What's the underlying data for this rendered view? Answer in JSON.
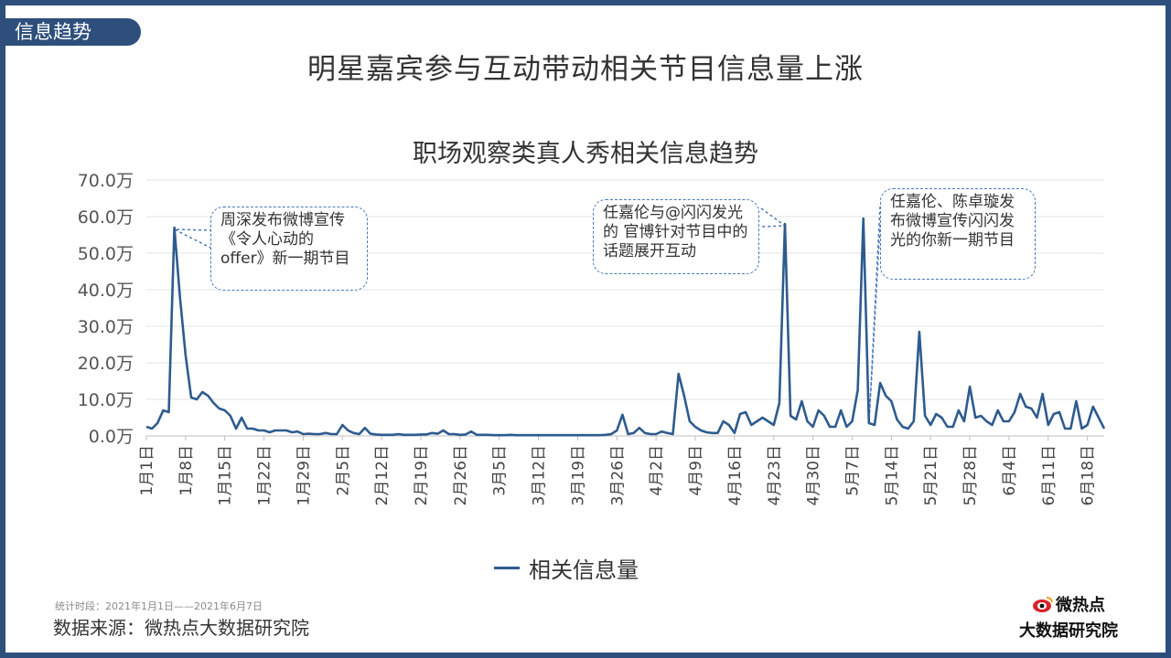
{
  "tag": "信息趋势",
  "main_title": "明星嘉宾参与互动带动相关节目信息量上涨",
  "chart_data": {
    "type": "line",
    "title": "职场观察类真人秀相关信息趋势",
    "ylim": [
      0,
      70
    ],
    "ytick_labels": [
      "0.0万",
      "10.0万",
      "20.0万",
      "30.0万",
      "40.0万",
      "50.0万",
      "60.0万",
      "70.0万"
    ],
    "grid": true,
    "legend_position": "bottom-center",
    "x_tick_labels": [
      "1月1日",
      "1月8日",
      "1月15日",
      "1月22日",
      "1月29日",
      "2月5日",
      "2月12日",
      "2月19日",
      "2月26日",
      "3月5日",
      "3月12日",
      "3月19日",
      "3月26日",
      "4月2日",
      "4月9日",
      "4月16日",
      "4月23日",
      "4月30日",
      "5月7日",
      "5月14日",
      "5月21日",
      "5月28日",
      "6月4日",
      "6月11日",
      "6月18日"
    ],
    "x_tick_day_index": [
      0,
      7,
      14,
      21,
      28,
      35,
      42,
      49,
      56,
      63,
      70,
      77,
      84,
      91,
      98,
      105,
      112,
      119,
      126,
      133,
      140,
      147,
      154,
      161,
      168
    ],
    "series": [
      {
        "name": "相关信息量",
        "color": "#2e5b8e",
        "values": [
          2.5,
          2.0,
          3.5,
          7.0,
          6.5,
          57.0,
          38.0,
          22.0,
          10.5,
          10.0,
          12.0,
          11.0,
          9.0,
          7.5,
          7.0,
          5.5,
          2.0,
          5.0,
          2.0,
          2.0,
          1.5,
          1.5,
          1.0,
          1.5,
          1.5,
          1.5,
          1.0,
          1.2,
          0.5,
          0.6,
          0.5,
          0.5,
          0.8,
          0.5,
          0.5,
          3.0,
          1.5,
          0.8,
          0.5,
          2.2,
          0.6,
          0.4,
          0.3,
          0.3,
          0.3,
          0.5,
          0.3,
          0.3,
          0.3,
          0.4,
          0.4,
          0.8,
          0.6,
          1.5,
          0.5,
          0.5,
          0.3,
          0.4,
          1.2,
          0.3,
          0.3,
          0.3,
          0.2,
          0.2,
          0.2,
          0.3,
          0.2,
          0.2,
          0.2,
          0.2,
          0.2,
          0.2,
          0.2,
          0.2,
          0.2,
          0.2,
          0.2,
          0.2,
          0.2,
          0.2,
          0.2,
          0.2,
          0.3,
          0.5,
          1.5,
          5.8,
          0.5,
          0.8,
          2.2,
          0.8,
          0.5,
          0.5,
          1.2,
          0.8,
          0.5,
          17.0,
          11.0,
          4.0,
          2.5,
          1.5,
          1.0,
          0.8,
          0.8,
          4.0,
          3.0,
          0.8,
          6.0,
          6.5,
          3.0,
          4.0,
          5.0,
          4.0,
          3.0,
          9.0,
          58.0,
          5.5,
          4.5,
          9.5,
          4.0,
          2.5,
          7.0,
          5.5,
          2.5,
          2.5,
          7.0,
          2.5,
          4.0,
          12.5,
          59.5,
          3.5,
          3.0,
          14.5,
          11.0,
          9.5,
          4.5,
          2.5,
          2.0,
          4.0,
          28.5,
          5.5,
          3.0,
          6.0,
          5.0,
          2.5,
          2.5,
          7.0,
          4.0,
          13.5,
          5.0,
          5.5,
          4.0,
          3.0,
          7.0,
          4.0,
          4.0,
          6.5,
          11.5,
          8.0,
          7.5,
          5.0,
          11.5,
          3.0,
          6.0,
          6.5,
          2.0,
          2.0,
          9.5,
          2.0,
          3.0,
          8.0,
          5.0,
          2.0
        ]
      }
    ],
    "annotations": [
      {
        "text": "周深发布微博宣传《令人心动的offer》新一期节目",
        "point_index": 5
      },
      {
        "text": "任嘉伦与@闪闪发光的 官博针对节目中的话题展开互动",
        "point_index": 114
      },
      {
        "text": "任嘉伦、陈卓璇发布微博宣传闪闪发光的你新一期节目",
        "point_index": 129
      }
    ]
  },
  "footer": {
    "period": "统计时段：2021年1月1日——2021年6月7日",
    "source": "数据来源：微热点大数据研究院"
  },
  "logo": {
    "line1": "微热点",
    "line2": "大数据研究院"
  }
}
